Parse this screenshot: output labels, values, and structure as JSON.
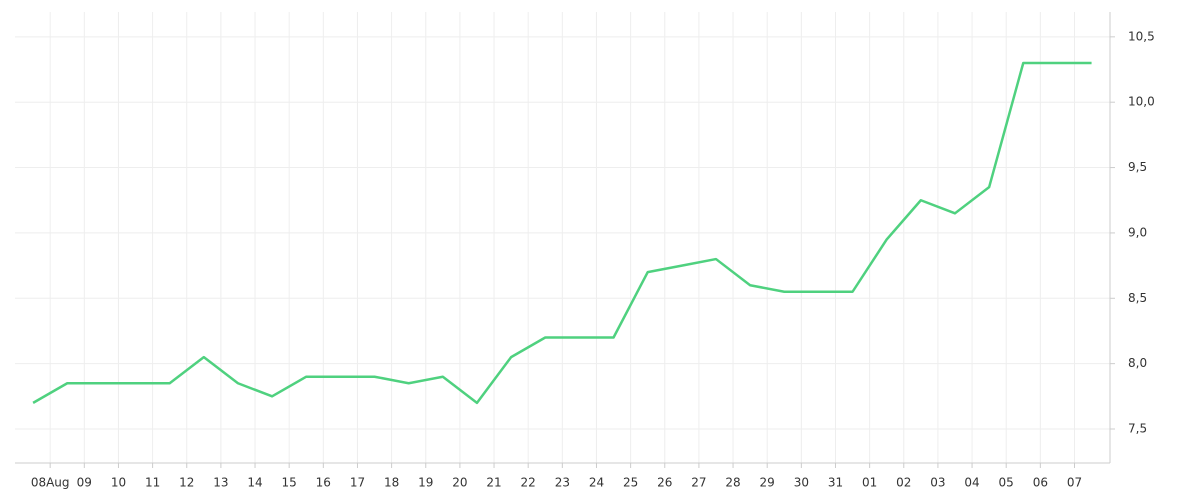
{
  "chart_data": {
    "type": "line",
    "x": [
      0,
      1,
      2,
      3,
      4,
      5,
      6,
      7,
      8,
      9,
      10,
      11,
      12,
      13,
      14,
      15,
      16,
      17,
      18,
      19,
      20,
      21,
      22,
      23,
      24,
      25,
      26,
      27,
      28,
      29,
      30,
      31
    ],
    "series": [
      {
        "color": "#4fd17f",
        "values": [
          7.7,
          7.85,
          7.85,
          7.85,
          7.85,
          8.05,
          7.85,
          7.75,
          7.9,
          7.9,
          7.9,
          7.85,
          7.9,
          7.7,
          8.05,
          8.2,
          8.2,
          8.2,
          8.7,
          8.75,
          8.8,
          8.6,
          8.55,
          8.55,
          8.55,
          8.95,
          9.25,
          9.15,
          9.35,
          10.3,
          10.3,
          10.3
        ]
      }
    ],
    "xlim": [
      -0.53,
      31.54
    ],
    "xticks": [
      {
        "value": 0.5,
        "label": "08Aug"
      },
      {
        "value": 1.5,
        "label": "09"
      },
      {
        "value": 2.5,
        "label": "10"
      },
      {
        "value": 3.5,
        "label": "11"
      },
      {
        "value": 4.5,
        "label": "12"
      },
      {
        "value": 5.5,
        "label": "13"
      },
      {
        "value": 6.5,
        "label": "14"
      },
      {
        "value": 7.5,
        "label": "15"
      },
      {
        "value": 8.5,
        "label": "16"
      },
      {
        "value": 9.5,
        "label": "17"
      },
      {
        "value": 10.5,
        "label": "18"
      },
      {
        "value": 11.5,
        "label": "19"
      },
      {
        "value": 12.5,
        "label": "20"
      },
      {
        "value": 13.5,
        "label": "21"
      },
      {
        "value": 14.5,
        "label": "22"
      },
      {
        "value": 15.5,
        "label": "23"
      },
      {
        "value": 16.5,
        "label": "24"
      },
      {
        "value": 17.5,
        "label": "25"
      },
      {
        "value": 18.5,
        "label": "26"
      },
      {
        "value": 19.5,
        "label": "27"
      },
      {
        "value": 20.5,
        "label": "28"
      },
      {
        "value": 21.5,
        "label": "29"
      },
      {
        "value": 22.5,
        "label": "30"
      },
      {
        "value": 23.5,
        "label": "31"
      },
      {
        "value": 24.5,
        "label": "01"
      },
      {
        "value": 25.5,
        "label": "02"
      },
      {
        "value": 26.5,
        "label": "03"
      },
      {
        "value": 27.5,
        "label": "04"
      },
      {
        "value": 28.5,
        "label": "05"
      },
      {
        "value": 29.5,
        "label": "06"
      },
      {
        "value": 30.5,
        "label": "07"
      }
    ],
    "ylim": [
      7.24,
      10.69
    ],
    "yticks": [
      {
        "value": 7.5,
        "label": "7,5"
      },
      {
        "value": 8,
        "label": "8,0"
      },
      {
        "value": 8.5,
        "label": "8,5"
      },
      {
        "value": 9,
        "label": "9,0"
      },
      {
        "value": 9.5,
        "label": "9,5"
      },
      {
        "value": 10,
        "label": "10,0"
      },
      {
        "value": 10.5,
        "label": "10,5"
      }
    ],
    "grid": true
  }
}
